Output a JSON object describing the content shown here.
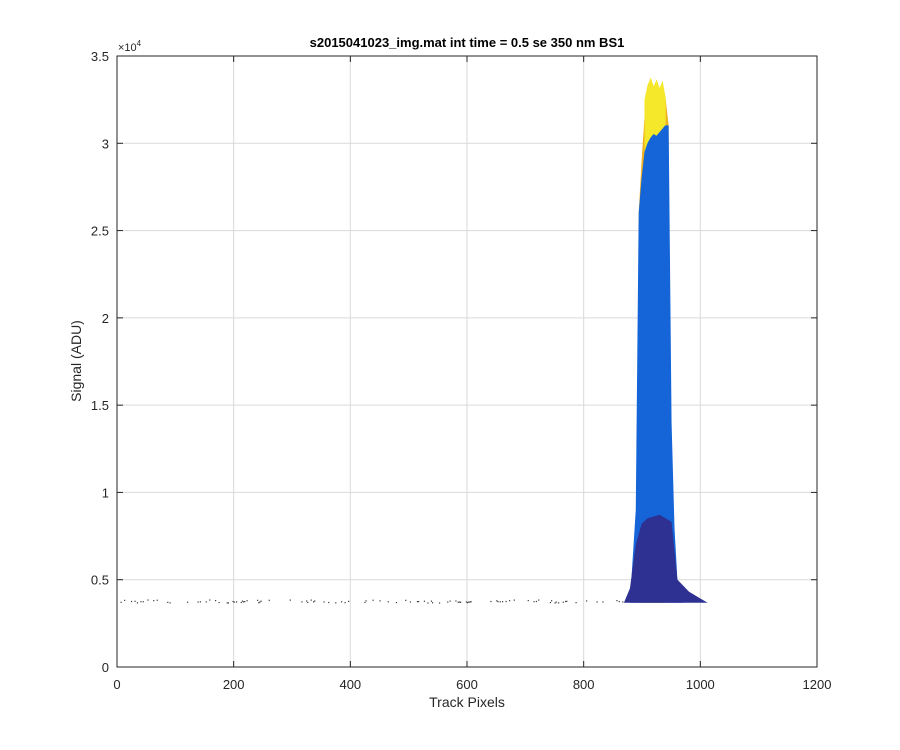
{
  "chart_data": {
    "type": "area",
    "title": "s2015041023_img.mat int time = 0.5 se  350 nm BS1",
    "xlabel": "Track Pixels",
    "ylabel": "Signal (ADU)",
    "xlim": [
      0,
      1200
    ],
    "ylim": [
      0,
      35000
    ],
    "xticks": [
      0,
      200,
      400,
      600,
      800,
      1000,
      1200
    ],
    "xtick_labels": [
      "0",
      "200",
      "400",
      "600",
      "800",
      "1000",
      "1200"
    ],
    "yticks": [
      0,
      5000,
      10000,
      15000,
      20000,
      25000,
      30000,
      35000
    ],
    "ytick_labels": [
      "0",
      "0.5",
      "1",
      "1.5",
      "2",
      "2.5",
      "3",
      "3.5"
    ],
    "y_exponent": "×10",
    "y_exponent_power": "4",
    "grid": true,
    "baseline_level": 3700,
    "series": [
      {
        "color": "#EDB120",
        "x": [
          895,
          900,
          905,
          910,
          915,
          920,
          925,
          930,
          935,
          940,
          945
        ],
        "y": [
          26000,
          29000,
          31500,
          33000,
          33600,
          33200,
          33500,
          33000,
          33400,
          32500,
          31000
        ]
      },
      {
        "color": "#F5E72A",
        "x": [
          905,
          910,
          915,
          920,
          925,
          930,
          935,
          940
        ],
        "y": [
          32500,
          33300,
          33700,
          33200,
          33600,
          33100,
          33500,
          32600
        ]
      },
      {
        "color": "#1565D8",
        "x": [
          880,
          890,
          895,
          900,
          905,
          910,
          915,
          920,
          925,
          930,
          935,
          940,
          945,
          950,
          955,
          960,
          970
        ],
        "y": [
          3700,
          9000,
          26000,
          28000,
          29500,
          30000,
          30300,
          30500,
          30400,
          30600,
          30800,
          31000,
          31000,
          14000,
          8000,
          5000,
          3800
        ]
      },
      {
        "color": "#2E3192",
        "x": [
          870,
          880,
          890,
          900,
          910,
          920,
          930,
          940,
          950,
          960,
          980,
          1000,
          1010
        ],
        "y": [
          3700,
          4500,
          7000,
          8200,
          8500,
          8600,
          8700,
          8500,
          8300,
          5000,
          4300,
          3900,
          3700
        ]
      }
    ]
  }
}
